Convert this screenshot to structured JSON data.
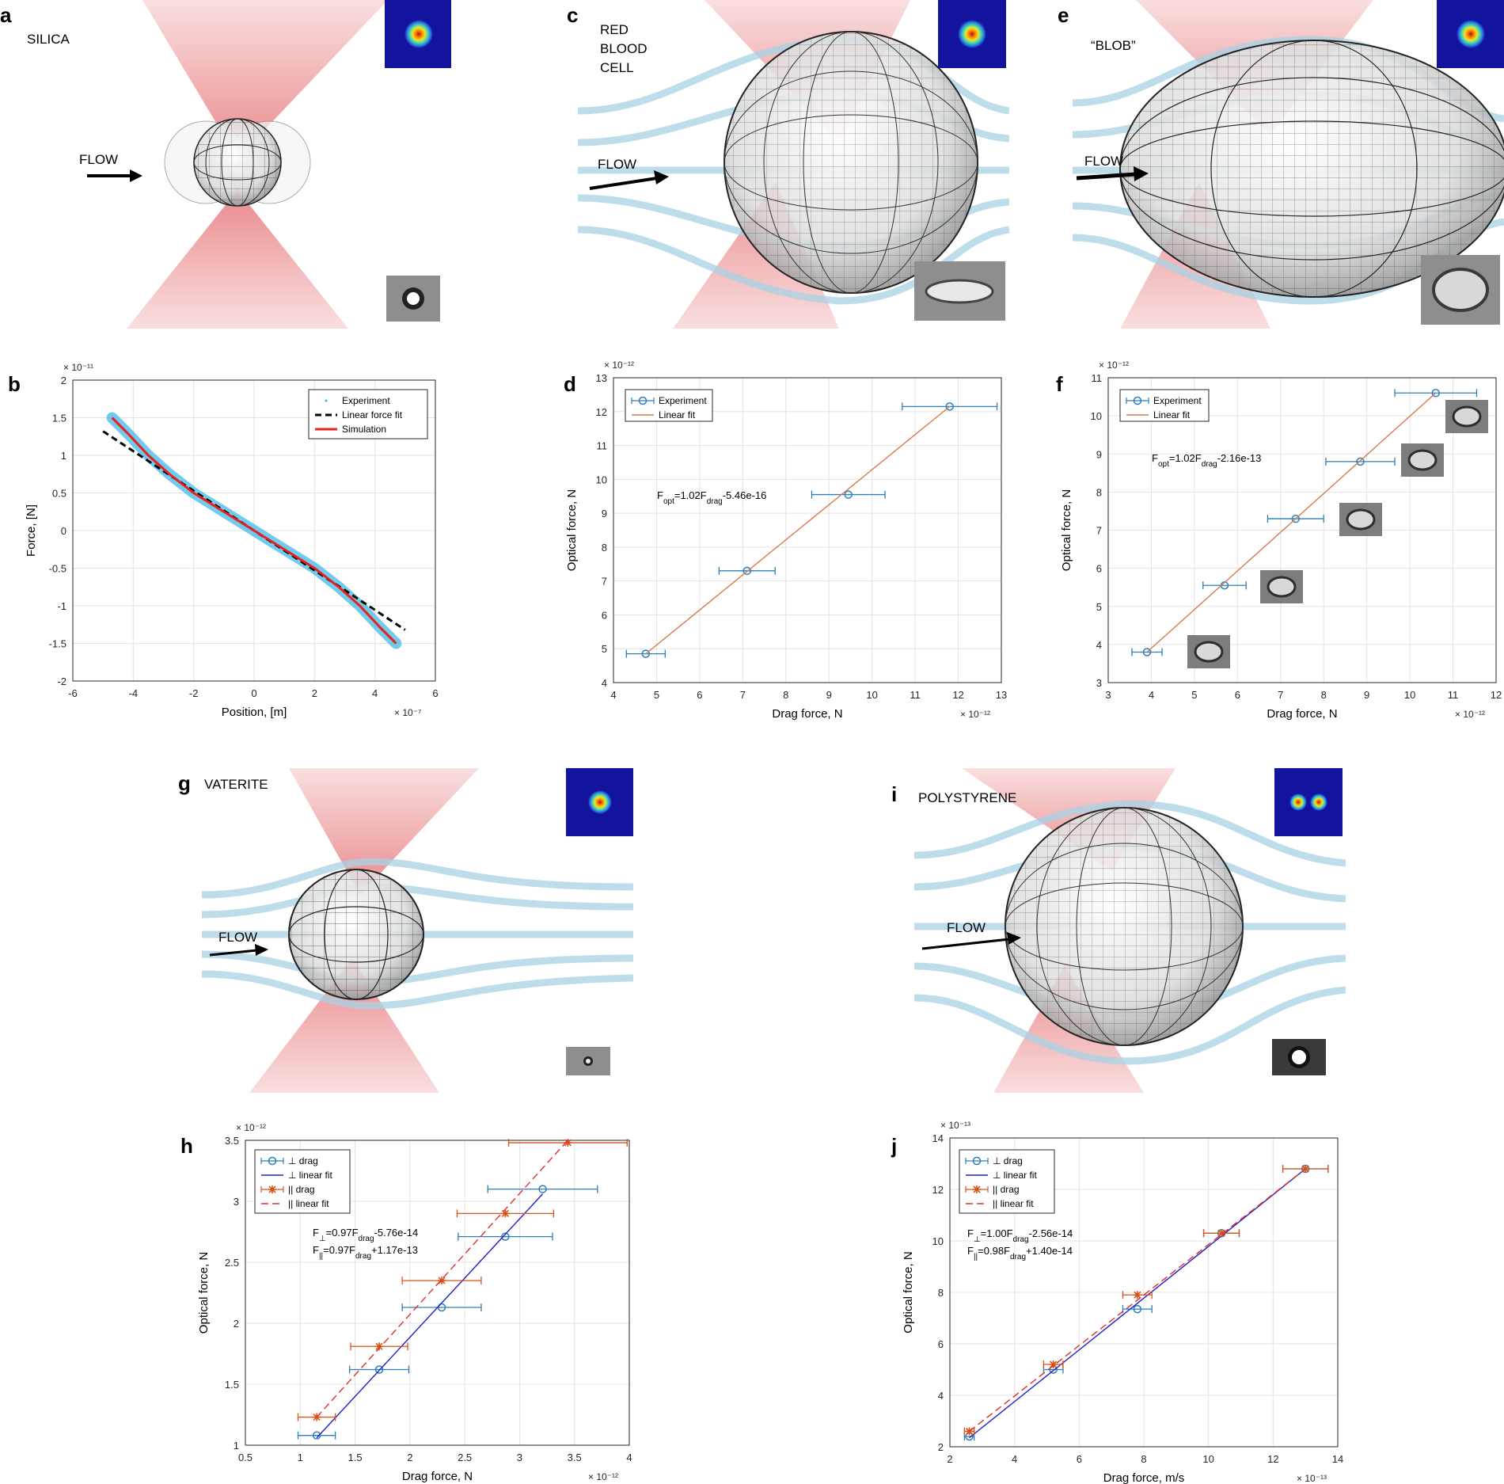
{
  "figure": {
    "panels": [
      {
        "id": "a",
        "label": "a",
        "particle": "SILICA",
        "flow_label": "FLOW",
        "beam_mode": "gaussian"
      },
      {
        "id": "c",
        "label": "c",
        "particle": "RED\nBLOOD\nCELL",
        "flow_label": "FLOW",
        "beam_mode": "gaussian"
      },
      {
        "id": "e",
        "label": "e",
        "particle": "“BLOB”",
        "flow_label": "FLOW",
        "beam_mode": "gaussian"
      },
      {
        "id": "g",
        "label": "g",
        "particle": "VATERITE",
        "flow_label": "FLOW",
        "beam_mode": "gaussian"
      },
      {
        "id": "i",
        "label": "i",
        "particle": "POLYSTYRENE",
        "flow_label": "FLOW",
        "beam_mode": "donut"
      }
    ]
  },
  "chart_data": [
    {
      "id": "b",
      "label": "b",
      "type": "scatter",
      "xlabel": "Position, [m]",
      "ylabel": "Force, [N]",
      "xlim": [
        -6,
        6
      ],
      "ylim": [
        -2,
        2
      ],
      "xticks": [
        "-6",
        "-4",
        "-2",
        "0",
        "2",
        "4",
        "6"
      ],
      "yticks": [
        "-2",
        "-1.5",
        "-1",
        "-0.5",
        "0",
        "0.5",
        "1",
        "1.5",
        "2"
      ],
      "x_exponent": "× 10⁻⁷",
      "y_exponent": "× 10⁻¹¹",
      "legend": [
        "Experiment",
        "Linear force fit",
        "Simulation"
      ],
      "series": [
        {
          "name": "Experiment",
          "x": [
            -4.7,
            -4.2,
            -3.5,
            -2.8,
            -2.0,
            -1.0,
            0,
            1.0,
            2.0,
            2.8,
            3.5,
            4.2,
            4.7
          ],
          "y": [
            1.5,
            1.3,
            1.0,
            0.75,
            0.5,
            0.25,
            0,
            -0.25,
            -0.5,
            -0.75,
            -1.0,
            -1.3,
            -1.5
          ]
        },
        {
          "name": "Linear force fit",
          "x": [
            -5.0,
            5.0
          ],
          "y": [
            1.32,
            -1.32
          ]
        },
        {
          "name": "Simulation",
          "x": [
            -4.7,
            -4.2,
            -3.5,
            -2.8,
            -2.0,
            -1.0,
            0,
            1.0,
            2.0,
            2.8,
            3.5,
            4.2,
            4.7
          ],
          "y": [
            1.5,
            1.3,
            1.0,
            0.75,
            0.5,
            0.25,
            0,
            -0.25,
            -0.5,
            -0.75,
            -1.0,
            -1.3,
            -1.5
          ]
        }
      ]
    },
    {
      "id": "d",
      "label": "d",
      "type": "scatter",
      "xlabel": "Drag force, N",
      "ylabel": "Optical force, N",
      "xlim": [
        4,
        13
      ],
      "ylim": [
        4,
        13
      ],
      "xticks": [
        "4",
        "5",
        "6",
        "7",
        "8",
        "9",
        "10",
        "11",
        "12",
        "13"
      ],
      "yticks": [
        "4",
        "5",
        "6",
        "7",
        "8",
        "9",
        "10",
        "11",
        "12",
        "13"
      ],
      "x_exponent": "× 10⁻¹²",
      "y_exponent": "× 10⁻¹²",
      "legend": [
        "Experiment",
        "Linear fit"
      ],
      "annotation": {
        "prefix": "F",
        "sub1": "opt",
        "mid": "=1.02F",
        "sub2": "drag",
        "suffix": "-5.46e-16"
      },
      "series": [
        {
          "name": "Experiment",
          "x": [
            4.75,
            7.1,
            9.45,
            11.8
          ],
          "y": [
            4.85,
            7.3,
            9.55,
            12.15
          ],
          "xerr": [
            0.45,
            0.65,
            0.85,
            1.1
          ]
        },
        {
          "name": "Linear fit",
          "x": [
            4.75,
            11.8
          ],
          "y": [
            4.85,
            12.15
          ]
        }
      ]
    },
    {
      "id": "f",
      "label": "f",
      "type": "scatter",
      "xlabel": "Drag force, N",
      "ylabel": "Optical force, N",
      "xlim": [
        3,
        12
      ],
      "ylim": [
        3,
        11
      ],
      "xticks": [
        "3",
        "4",
        "5",
        "6",
        "7",
        "8",
        "9",
        "10",
        "11",
        "12"
      ],
      "yticks": [
        "3",
        "4",
        "5",
        "6",
        "7",
        "8",
        "9",
        "10",
        "11"
      ],
      "x_exponent": "× 10⁻¹²",
      "y_exponent": "× 10⁻¹²",
      "legend": [
        "Experiment",
        "Linear fit"
      ],
      "annotation": {
        "prefix": "F",
        "sub1": "opt",
        "mid": "=1.02F",
        "sub2": "drag",
        "suffix": "-2.16e-13"
      },
      "series": [
        {
          "name": "Experiment",
          "x": [
            3.9,
            5.7,
            7.35,
            8.85,
            10.6
          ],
          "y": [
            3.8,
            5.55,
            7.3,
            8.8,
            10.6
          ],
          "xerr": [
            0.35,
            0.5,
            0.65,
            0.8,
            0.95
          ]
        },
        {
          "name": "Linear fit",
          "x": [
            3.9,
            10.6
          ],
          "y": [
            3.8,
            10.6
          ]
        }
      ]
    },
    {
      "id": "h",
      "label": "h",
      "type": "scatter",
      "xlabel": "Drag force, N",
      "ylabel": "Optical force, N",
      "xlim": [
        0.5,
        4
      ],
      "ylim": [
        1,
        3.5
      ],
      "xticks": [
        "0.5",
        "1",
        "1.5",
        "2",
        "2.5",
        "3",
        "3.5",
        "4"
      ],
      "yticks": [
        "1",
        "1.5",
        "2",
        "2.5",
        "3",
        "3.5"
      ],
      "x_exponent": "× 10⁻¹²",
      "y_exponent": "× 10⁻¹²",
      "legend": [
        "⊥ drag",
        "⊥ linear fit",
        "|| drag",
        "|| linear fit"
      ],
      "annotation_lines": [
        {
          "prefix": "F",
          "sub1": "⊥",
          "mid": "=0.97F",
          "sub2": "drag",
          "suffix": "-5.76e-14"
        },
        {
          "prefix": "F",
          "sub1": "||",
          "mid": "=0.97F",
          "sub2": "drag",
          "suffix": "+1.17e-13"
        }
      ],
      "series": [
        {
          "name": "⊥ drag",
          "x": [
            1.15,
            1.72,
            2.29,
            2.87,
            3.21
          ],
          "y": [
            1.08,
            1.62,
            2.13,
            2.71,
            3.1
          ],
          "xerr": [
            0.17,
            0.27,
            0.36,
            0.43,
            0.5
          ]
        },
        {
          "name": "⊥ linear fit",
          "x": [
            1.15,
            3.21
          ],
          "y": [
            1.06,
            3.06
          ]
        },
        {
          "name": "|| drag",
          "x": [
            1.15,
            1.72,
            2.29,
            2.87,
            3.44
          ],
          "y": [
            1.23,
            1.81,
            2.35,
            2.9,
            3.48
          ],
          "xerr": [
            0.17,
            0.26,
            0.36,
            0.44,
            0.54
          ]
        },
        {
          "name": "|| linear fit",
          "x": [
            1.15,
            3.44
          ],
          "y": [
            1.23,
            3.5
          ]
        }
      ]
    },
    {
      "id": "j",
      "label": "j",
      "type": "scatter",
      "xlabel": "Drag force, m/s",
      "ylabel": "Optical force, N",
      "xlim": [
        2,
        14
      ],
      "ylim": [
        2,
        14
      ],
      "xticks": [
        "2",
        "4",
        "6",
        "8",
        "10",
        "12",
        "14"
      ],
      "yticks": [
        "2",
        "4",
        "6",
        "8",
        "10",
        "12",
        "14"
      ],
      "x_exponent": "× 10⁻¹³",
      "y_exponent": "× 10⁻¹³",
      "legend": [
        "⊥ drag",
        "⊥ linear fit",
        "|| drag",
        "|| linear fit"
      ],
      "annotation_lines": [
        {
          "prefix": "F",
          "sub1": "⊥",
          "mid": "=1.00F",
          "sub2": "drag",
          "suffix": "-2.56e-14"
        },
        {
          "prefix": "F",
          "sub1": "||",
          "mid": "=0.98F",
          "sub2": "drag",
          "suffix": "+1.40e-14"
        }
      ],
      "series": [
        {
          "name": "⊥ drag",
          "x": [
            2.6,
            5.2,
            7.8,
            10.4,
            13.0
          ],
          "y": [
            2.4,
            5.0,
            7.35,
            10.3,
            12.8
          ],
          "xerr": [
            0.15,
            0.3,
            0.45,
            0.55,
            0.7
          ]
        },
        {
          "name": "⊥ linear fit",
          "x": [
            2.6,
            13.0
          ],
          "y": [
            2.35,
            12.8
          ]
        },
        {
          "name": "|| drag",
          "x": [
            2.6,
            5.2,
            7.8,
            10.4,
            13.0
          ],
          "y": [
            2.6,
            5.2,
            7.9,
            10.3,
            12.8
          ],
          "xerr": [
            0.15,
            0.3,
            0.45,
            0.55,
            0.7
          ]
        },
        {
          "name": "|| linear fit",
          "x": [
            2.6,
            13.0
          ],
          "y": [
            2.6,
            12.8
          ]
        }
      ]
    }
  ],
  "colors": {
    "experiment_cyan": "#33b5e6",
    "simulation_red": "#e8211f",
    "fit_orange": "#d9794f",
    "perp_blue": "#2c7fb8",
    "perp_fit": "#1f1fc8",
    "para_orange": "#d95319",
    "para_fit": "#e0302a",
    "beam_red": "#d8262b",
    "stream_blue": "#a9d2e4",
    "grid": "#e3e3e3"
  }
}
